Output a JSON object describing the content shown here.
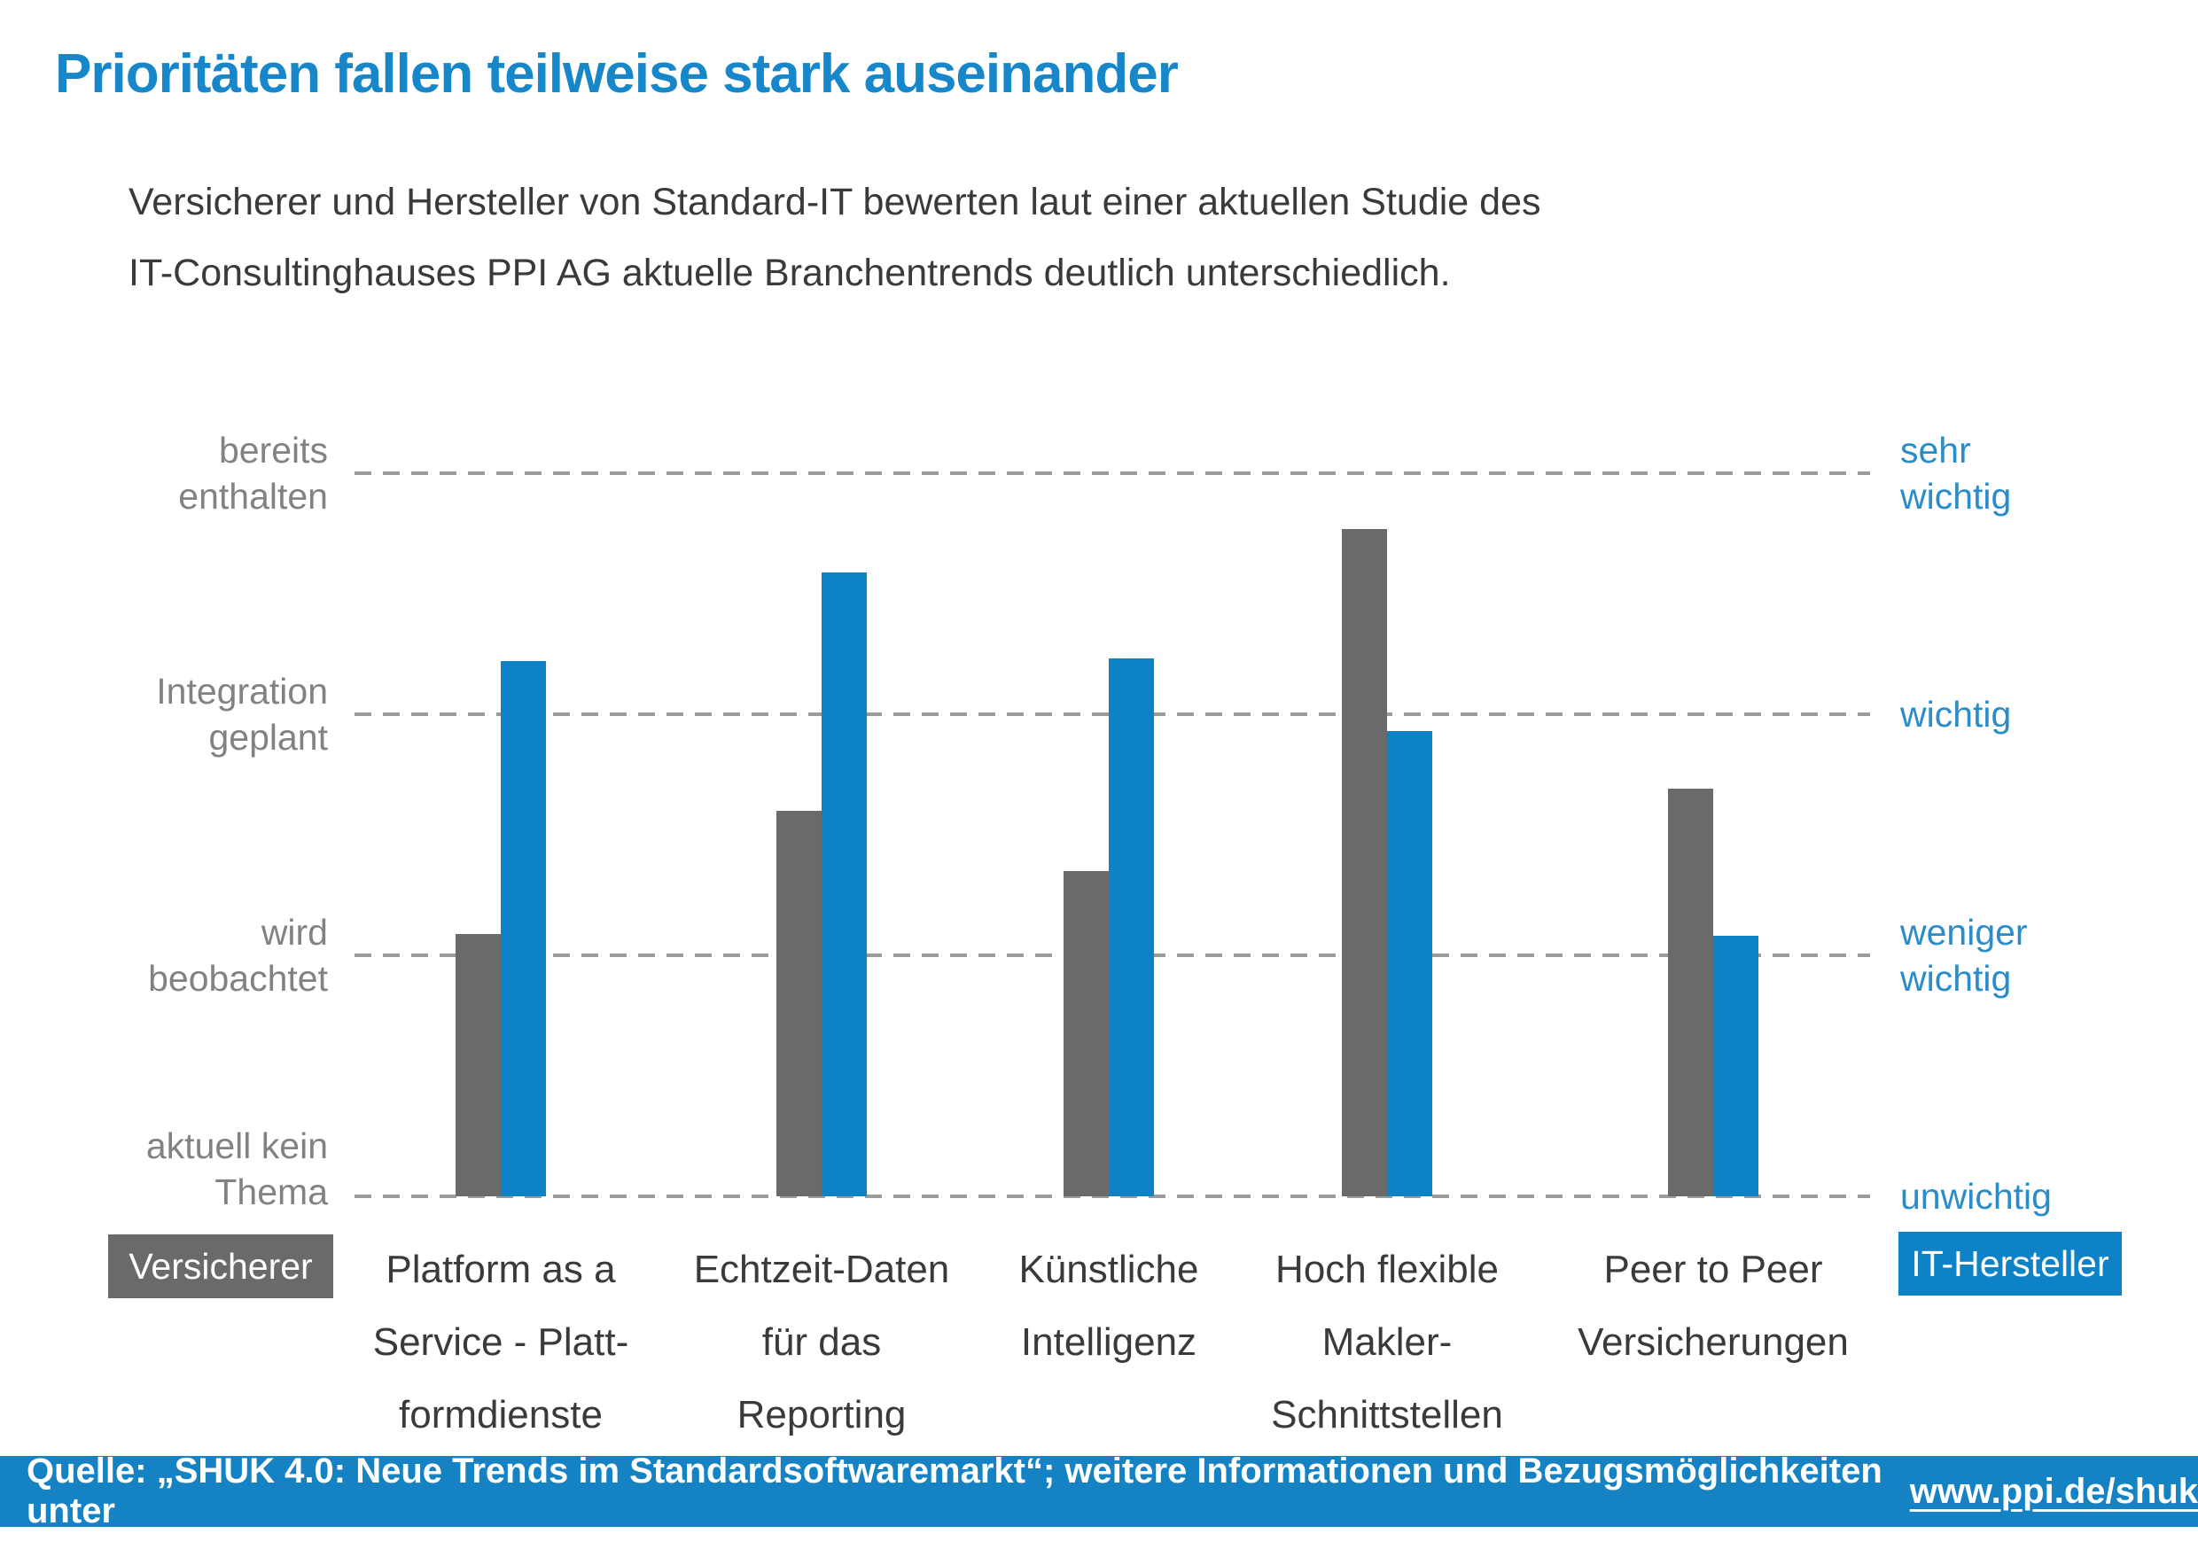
{
  "title": "Prioritäten fallen teilweise stark auseinander",
  "subtitle_lines": [
    "Versicherer und Hersteller von Standard-IT bewerten laut einer aktuellen Studie des",
    "IT-Consultinghauses PPI AG aktuelle Branchentrends deutlich unterschiedlich."
  ],
  "colors": {
    "title_blue": "#1787CA",
    "bar_blue": "#0E82C6",
    "bar_gray": "#6A6A6A",
    "axis_label_gray": "#828282",
    "axis_label_blue": "#2A8CCB",
    "category_text": "#3A3A3A",
    "subtitle_text": "#3A3A3A",
    "dash_gray": "#9B9B9B",
    "footer_bg": "#1582C4",
    "footer_text": "#FFFFFF"
  },
  "legend": {
    "left_label": "Versicherer",
    "right_label": "IT-Hersteller"
  },
  "axis": {
    "left_labels": [
      [
        "bereits",
        "enthalten"
      ],
      [
        "Integration",
        "geplant"
      ],
      [
        "wird",
        "beobachtet"
      ],
      [
        "aktuell kein",
        "Thema"
      ]
    ],
    "right_labels": [
      [
        "sehr",
        "wichtig"
      ],
      [
        "wichtig"
      ],
      [
        "weniger",
        "wichtig"
      ],
      [
        "unwichtig"
      ]
    ]
  },
  "chart_data": {
    "type": "bar",
    "title": "Prioritäten fallen teilweise stark auseinander",
    "categories": [
      [
        "Platform as a",
        "Service - Platt-",
        "formdienste"
      ],
      [
        "Echtzeit-Daten",
        "für das",
        "Reporting"
      ],
      [
        "Künstliche",
        "Intelligenz"
      ],
      [
        "Hoch flexible",
        "Makler-",
        "Schnittstellen"
      ],
      [
        "Peer to Peer",
        "Versicherungen"
      ]
    ],
    "series": [
      {
        "name": "Versicherer",
        "color": "#6A6A6A",
        "values": [
          2.09,
          2.6,
          2.35,
          3.77,
          2.69
        ]
      },
      {
        "name": "IT-Hersteller",
        "color": "#0E82C6",
        "values": [
          3.22,
          3.59,
          3.23,
          2.93,
          2.08
        ]
      }
    ],
    "value_scale": {
      "min": 1,
      "max": 4,
      "left_tick_labels_bottom_to_top": [
        "aktuell kein Thema",
        "wird beobachtet",
        "Integration geplant",
        "bereits enthalten"
      ],
      "right_tick_labels_bottom_to_top": [
        "unwichtig",
        "weniger wichtig",
        "wichtig",
        "sehr wichtig"
      ]
    },
    "grid": "dashed-horizontal",
    "legend_position": "bottom"
  },
  "footer": {
    "prefix": "Quelle: „SHUK 4.0: Neue Trends im Standardsoftwaremarkt“; weitere Informationen und Bezugsmöglichkeiten unter",
    "link": "www.ppi.de/shuk"
  }
}
